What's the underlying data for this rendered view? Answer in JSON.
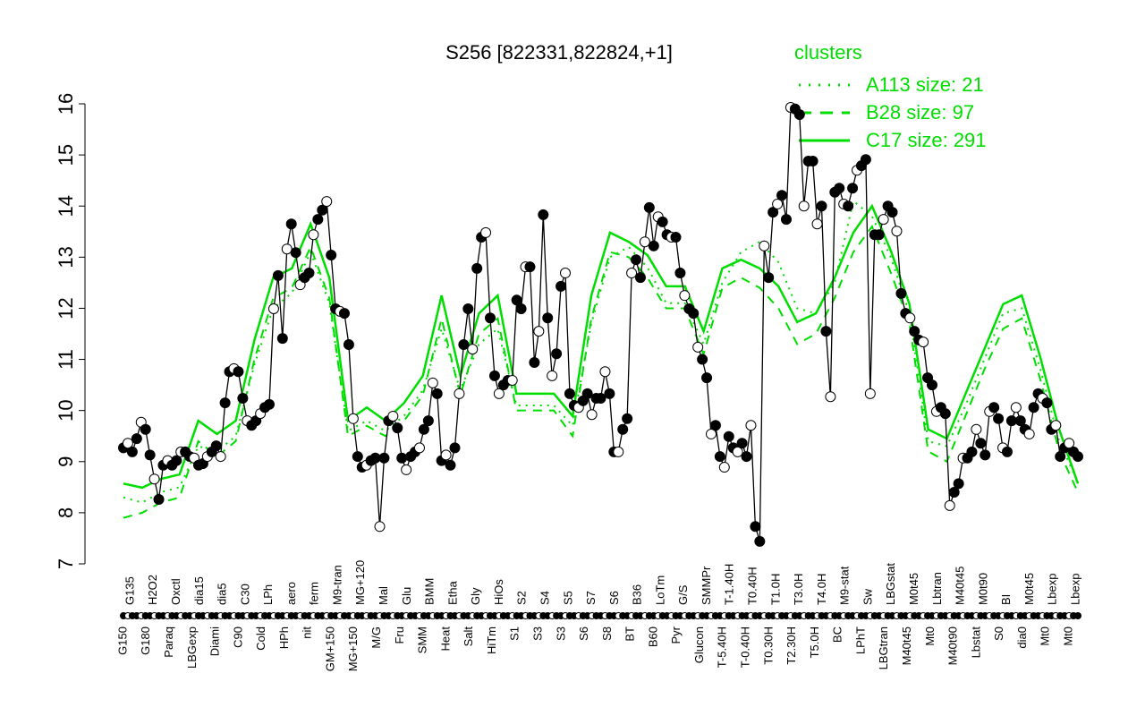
{
  "chart_data": {
    "type": "line",
    "title": "S256 [822331,822824,+1]",
    "ylim": [
      7,
      16
    ],
    "yticks": [
      7,
      8,
      9,
      10,
      11,
      12,
      13,
      14,
      15,
      16
    ],
    "legend": {
      "title": "clusters",
      "placement": "top-right",
      "entries": [
        {
          "name": "A113 size: 21",
          "style": "dotted"
        },
        {
          "name": "B28 size: 97",
          "style": "dashed"
        },
        {
          "name": "C17 size: 291",
          "style": "solid"
        }
      ]
    },
    "colors": {
      "clusters": "#00dd00",
      "main": "#000000"
    },
    "xlabels_top": [
      "G135",
      "H2O2",
      "Oxctl",
      "dia15",
      "dia5",
      "C30",
      "LPh",
      "aero",
      "ferm",
      "M9-tran",
      "MG+120",
      "Mal",
      "Glu",
      "BMM",
      "Etha",
      "Gly",
      "HiOs",
      "S2",
      "S4",
      "S5",
      "S7",
      "S6",
      "B36",
      "LoTm",
      "G/S",
      "SMMPr",
      "T-1.40H",
      "T0.40H",
      "T1.0H",
      "T3.0H",
      "T4.0H",
      "M9-stat",
      "Sw",
      "LBGstat",
      "M0t45",
      "Lbtran",
      "M40t45",
      "M0t90",
      "BI",
      "M0t45",
      "Lbexp",
      "Lbexp"
    ],
    "xlabels_bottom": [
      "G150",
      "G180",
      "Paraq",
      "LBGexp",
      "Diami",
      "C90",
      "Cold",
      "HPh",
      "nit",
      "GM+150",
      "MG+150",
      "M/G",
      "Fru",
      "SMM",
      "Heat",
      "Salt",
      "HiTm",
      "S1",
      "S3",
      "S3",
      "S6",
      "S8",
      "BT",
      "B60",
      "Pyr",
      "Glucon",
      "T-5.40H",
      "T-0.40H",
      "T0.30H",
      "T2.30H",
      "T5.0H",
      "BC",
      "LPhT",
      "LBGtran",
      "M40t45",
      "Mt0",
      "M40t90",
      "Lbstat",
      "S0",
      "dia0",
      "Mt0",
      "Mt0"
    ],
    "values": [
      9.27,
      9.36,
      9.19,
      9.45,
      9.77,
      9.63,
      9.13,
      8.66,
      8.26,
      8.93,
      9.02,
      8.93,
      9.02,
      9.19,
      9.19,
      9.1,
      9.07,
      8.93,
      8.96,
      9.1,
      9.19,
      9.31,
      9.1,
      10.15,
      10.76,
      10.82,
      10.76,
      10.24,
      9.8,
      9.71,
      9.8,
      9.94,
      10.06,
      10.12,
      11.99,
      12.64,
      11.41,
      13.16,
      13.65,
      13.09,
      12.46,
      12.6,
      12.69,
      13.44,
      13.74,
      13.92,
      14.09,
      13.04,
      11.99,
      11.94,
      11.9,
      11.29,
      9.84,
      9.1,
      8.89,
      8.93,
      9.02,
      9.07,
      7.73,
      9.07,
      9.8,
      9.89,
      9.66,
      9.07,
      8.84,
      9.1,
      9.19,
      9.27,
      9.63,
      9.8,
      10.54,
      10.33,
      9.02,
      9.13,
      8.93,
      9.27,
      10.33,
      11.29,
      11.99,
      11.2,
      12.78,
      13.39,
      13.48,
      11.81,
      10.68,
      10.33,
      10.5,
      10.59,
      10.59,
      12.16,
      11.99,
      12.81,
      12.81,
      10.94,
      11.55,
      13.83,
      11.81,
      10.68,
      11.11,
      12.43,
      12.69,
      10.33,
      10.1,
      10.06,
      10.19,
      10.33,
      9.92,
      10.24,
      10.24,
      10.76,
      10.33,
      9.19,
      9.19,
      9.63,
      9.84,
      12.69,
      12.95,
      12.6,
      13.3,
      13.97,
      13.22,
      13.79,
      13.69,
      13.44,
      13.39,
      13.39,
      12.69,
      12.25,
      11.99,
      11.9,
      11.24,
      11.0,
      10.64,
      9.54,
      9.71,
      9.1,
      8.89,
      9.49,
      9.27,
      9.19,
      9.36,
      9.1,
      9.71,
      7.73,
      7.44,
      13.22,
      12.6,
      13.88,
      14.04,
      14.21,
      13.74,
      15.93,
      15.9,
      15.79,
      14.0,
      14.88,
      14.88,
      13.65,
      14.0,
      11.55,
      10.27,
      14.27,
      14.35,
      14.04,
      14.0,
      14.35,
      14.7,
      14.79,
      14.91,
      10.33,
      13.44,
      13.44,
      13.74,
      14.0,
      13.88,
      13.51,
      12.29,
      11.9,
      11.81,
      11.55,
      11.38,
      11.34,
      10.64,
      10.5,
      9.98,
      10.06,
      9.94,
      8.14,
      8.4,
      8.57,
      9.07,
      9.07,
      9.19,
      9.63,
      9.36,
      9.13,
      9.98,
      10.06,
      9.84,
      9.27,
      9.19,
      9.8,
      10.06,
      9.8,
      9.63,
      9.54,
      10.06,
      10.33,
      10.24,
      10.15,
      9.63,
      9.71,
      9.1,
      9.27,
      9.36,
      9.19,
      9.1
    ],
    "series": [
      {
        "name": "C17 size: 291",
        "values": [
          8.57,
          8.49,
          8.66,
          8.75,
          9.8,
          9.54,
          9.8,
          11.38,
          12.6,
          12.78,
          13.65,
          12.6,
          9.8,
          10.06,
          9.8,
          10.15,
          10.68,
          12.25,
          10.68,
          11.9,
          12.25,
          10.33,
          10.33,
          10.33,
          9.89,
          12.25,
          13.48,
          13.3,
          13.04,
          12.43,
          12.43,
          11.55,
          12.78,
          12.95,
          12.78,
          12.43,
          11.73,
          11.9,
          12.6,
          13.48,
          14.0,
          13.13,
          12.08,
          9.63,
          9.45,
          10.33,
          11.2,
          12.08,
          12.25,
          11.03,
          9.63,
          8.57
        ]
      },
      {
        "name": "B28 size: 97",
        "values": [
          7.9,
          8.0,
          8.2,
          8.3,
          9.4,
          9.1,
          9.4,
          11.0,
          12.2,
          12.4,
          13.2,
          12.2,
          9.5,
          9.7,
          9.5,
          9.8,
          10.3,
          11.8,
          10.3,
          11.5,
          11.8,
          10.0,
          10.0,
          10.0,
          9.5,
          11.8,
          13.1,
          13.0,
          12.6,
          12.0,
          12.0,
          11.1,
          12.4,
          12.6,
          12.4,
          12.0,
          11.3,
          11.5,
          12.2,
          13.1,
          13.6,
          12.7,
          11.7,
          9.2,
          9.0,
          9.9,
          10.8,
          11.6,
          11.8,
          10.6,
          9.2,
          8.4
        ]
      },
      {
        "name": "A113 size: 21",
        "values": [
          8.3,
          8.2,
          8.4,
          8.5,
          9.3,
          9.2,
          9.5,
          10.9,
          12.0,
          12.3,
          13.1,
          12.1,
          9.6,
          9.8,
          9.6,
          9.9,
          10.4,
          11.6,
          10.4,
          11.3,
          11.6,
          10.1,
          10.1,
          10.1,
          9.7,
          11.7,
          13.0,
          13.2,
          12.8,
          12.1,
          12.1,
          11.3,
          12.5,
          13.1,
          13.3,
          12.9,
          12.0,
          11.9,
          12.5,
          14.1,
          13.8,
          13.0,
          11.9,
          9.4,
          9.3,
          10.1,
          11.0,
          11.9,
          12.0,
          10.8,
          9.4,
          8.6
        ]
      }
    ]
  }
}
